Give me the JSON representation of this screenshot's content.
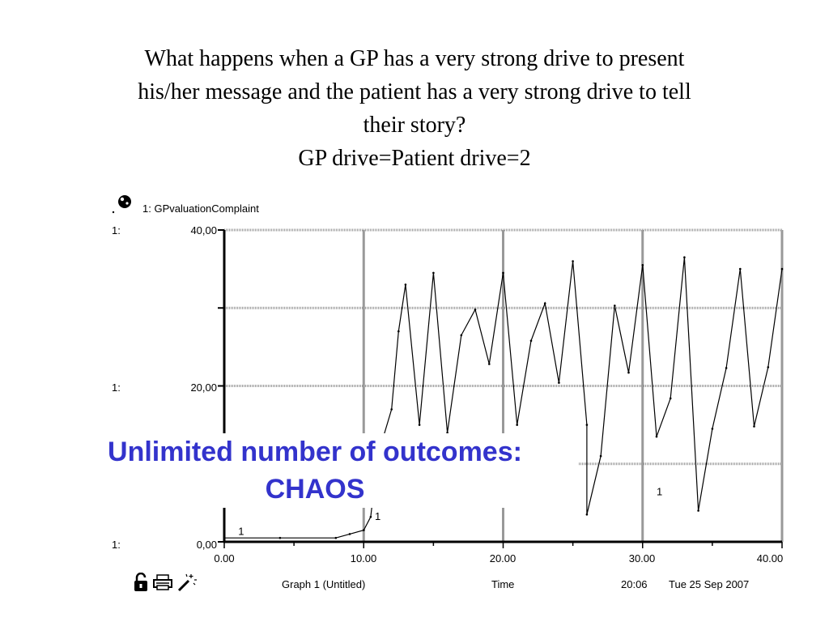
{
  "slide": {
    "title_lines": [
      "What happens when a GP  has a very strong drive to present",
      "his/her  message and the patient has a very strong drive to tell",
      "their story?",
      "GP drive=Patient drive=2"
    ],
    "overlay_lines": [
      "Unlimited number of outcomes:",
      "CHAOS"
    ],
    "overlay_color": "#3333cc"
  },
  "graph_window": {
    "legend": "1: GPvaluationComplaint",
    "scale_prefix": "1:",
    "y_tick_labels": [
      "40,00",
      "20,00",
      "0,00"
    ],
    "x_tick_labels": [
      "0.00",
      "10.00",
      "20.00",
      "30.00",
      "40.00"
    ],
    "footer": {
      "graph_name": "Graph 1 (Untitled)",
      "axis_name": "Time",
      "time": "20:06",
      "date": "Tue 25 Sep 2007"
    },
    "series_marker": "1",
    "icons": [
      "lock-icon",
      "printer-icon",
      "magic-wand-icon"
    ]
  },
  "chart_data": {
    "type": "line",
    "title": "",
    "xlabel": "Time",
    "ylabel": "",
    "xlim": [
      0,
      40
    ],
    "ylim": [
      0,
      40
    ],
    "x_ticks": [
      0,
      10,
      20,
      30,
      40
    ],
    "y_ticks": [
      0,
      20,
      40
    ],
    "grid": true,
    "series": [
      {
        "name": "GPvaluationComplaint",
        "color": "#000000",
        "points": [
          [
            0,
            0.5
          ],
          [
            4,
            0.5
          ],
          [
            8,
            0.5
          ],
          [
            9,
            1
          ],
          [
            10,
            1.5
          ],
          [
            10.5,
            3.2
          ],
          [
            11,
            11
          ],
          [
            12,
            17
          ],
          [
            12.5,
            27
          ],
          [
            13,
            33
          ],
          [
            14,
            15
          ],
          [
            15,
            34.5
          ],
          [
            16,
            14
          ],
          [
            17,
            26.5
          ],
          [
            18,
            29.8
          ],
          [
            19,
            22.8
          ],
          [
            20,
            34.5
          ],
          [
            21,
            15
          ],
          [
            22,
            25.8
          ],
          [
            23,
            30.6
          ],
          [
            24,
            20.4
          ],
          [
            25,
            36
          ],
          [
            26,
            15
          ],
          [
            26,
            3.5
          ],
          [
            27,
            11
          ],
          [
            28,
            30.3
          ],
          [
            29,
            21.7
          ],
          [
            30,
            35.5
          ],
          [
            31,
            13.5
          ],
          [
            32,
            18.4
          ],
          [
            33,
            36.5
          ],
          [
            34,
            4
          ],
          [
            35,
            14.5
          ],
          [
            36,
            22.3
          ],
          [
            37,
            35
          ],
          [
            38,
            14.8
          ],
          [
            39,
            22.4
          ],
          [
            40,
            35
          ]
        ]
      }
    ]
  }
}
